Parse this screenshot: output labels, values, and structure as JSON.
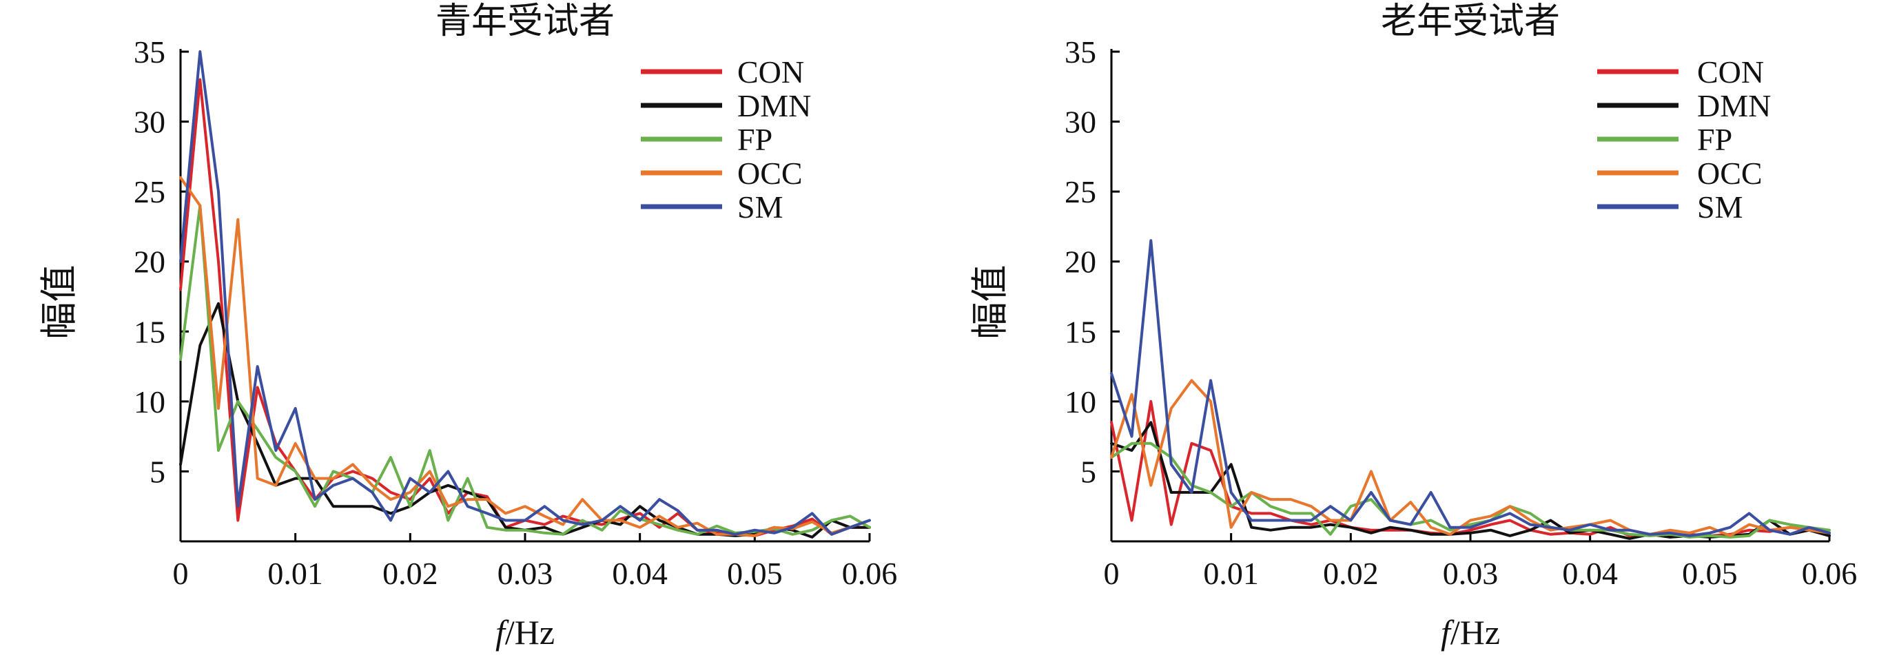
{
  "chart_data": [
    {
      "type": "line",
      "title": "青年受试者",
      "xlabel_italic": "f",
      "xlabel_rest": "/Hz",
      "ylabel": "幅值",
      "xlim": [
        0,
        0.06
      ],
      "ylim": [
        0,
        35
      ],
      "xticks": [
        0,
        0.01,
        0.02,
        0.03,
        0.04,
        0.05,
        0.06
      ],
      "xtick_labels": [
        "0",
        "0.01",
        "0.02",
        "0.03",
        "0.04",
        "0.05",
        "0.06"
      ],
      "yticks": [
        5,
        10,
        15,
        20,
        25,
        30,
        35
      ],
      "ytick_labels": [
        "5",
        "10",
        "15",
        "20",
        "25",
        "30",
        "35"
      ],
      "grid": false,
      "legend_position": "top-right",
      "series": [
        {
          "name": "CON",
          "color": "#d8262c",
          "x": [
            0,
            0.0017,
            0.0033,
            0.005,
            0.0067,
            0.0083,
            0.01,
            0.0117,
            0.0133,
            0.015,
            0.0167,
            0.0183,
            0.02,
            0.0217,
            0.0233,
            0.025,
            0.0267,
            0.0283,
            0.03,
            0.0317,
            0.0333,
            0.035,
            0.0367,
            0.0383,
            0.04,
            0.0417,
            0.0433,
            0.045,
            0.0467,
            0.0483,
            0.05,
            0.0517,
            0.0533,
            0.055,
            0.0567,
            0.0583,
            0.06
          ],
          "y": [
            18,
            33,
            20,
            1.5,
            11,
            7,
            5,
            3,
            4.5,
            5,
            4.5,
            3.5,
            3,
            4.5,
            2,
            3.5,
            3.2,
            1,
            1.5,
            1.2,
            1.8,
            1.4,
            1.2,
            1.6,
            2,
            1,
            2,
            0.8,
            0.6,
            0.5,
            0.4,
            0.8,
            1.1,
            1.6,
            0.5,
            1,
            1
          ]
        },
        {
          "name": "DMN",
          "color": "#111111",
          "x": [
            0,
            0.0017,
            0.0033,
            0.005,
            0.0067,
            0.0083,
            0.01,
            0.0117,
            0.0133,
            0.015,
            0.0167,
            0.0183,
            0.02,
            0.0217,
            0.0233,
            0.025,
            0.0267,
            0.0283,
            0.03,
            0.0317,
            0.0333,
            0.035,
            0.0367,
            0.0383,
            0.04,
            0.0417,
            0.0433,
            0.045,
            0.0467,
            0.0483,
            0.05,
            0.0517,
            0.0533,
            0.055,
            0.0567,
            0.0583,
            0.06
          ],
          "y": [
            5.5,
            14,
            17,
            10,
            7,
            4,
            4.5,
            4.5,
            2.5,
            2.5,
            2.5,
            2,
            2.5,
            3.5,
            4,
            3.5,
            3,
            1,
            0.8,
            1,
            0.5,
            1,
            1.5,
            1.2,
            2.5,
            1.5,
            1,
            0.5,
            0.5,
            0.4,
            0.5,
            1,
            0.8,
            0.3,
            1.5,
            1,
            1
          ]
        },
        {
          "name": "FP",
          "color": "#6ab04c",
          "x": [
            0,
            0.0017,
            0.0033,
            0.005,
            0.0067,
            0.0083,
            0.01,
            0.0117,
            0.0133,
            0.015,
            0.0167,
            0.0183,
            0.02,
            0.0217,
            0.0233,
            0.025,
            0.0267,
            0.0283,
            0.03,
            0.0317,
            0.0333,
            0.035,
            0.0367,
            0.0383,
            0.04,
            0.0417,
            0.0433,
            0.045,
            0.0467,
            0.0483,
            0.05,
            0.0517,
            0.0533,
            0.055,
            0.0567,
            0.0583,
            0.06
          ],
          "y": [
            13,
            24,
            6.5,
            10,
            8,
            6,
            5,
            2.5,
            5,
            4.5,
            3.5,
            6,
            2.5,
            6.5,
            1.5,
            4.5,
            1,
            0.8,
            0.8,
            0.6,
            0.5,
            1.5,
            0.8,
            2.2,
            1.6,
            1.2,
            0.8,
            0.5,
            1.1,
            0.6,
            0.7,
            0.9,
            0.5,
            0.8,
            1.5,
            1.8,
            1
          ]
        },
        {
          "name": "OCC",
          "color": "#e8772e",
          "x": [
            0,
            0.0017,
            0.0033,
            0.005,
            0.0067,
            0.0083,
            0.01,
            0.0117,
            0.0133,
            0.015,
            0.0167,
            0.0183,
            0.02,
            0.0217,
            0.0233,
            0.025,
            0.0267,
            0.0283,
            0.03,
            0.0317,
            0.0333,
            0.035,
            0.0367,
            0.0383,
            0.04,
            0.0417,
            0.0433,
            0.045,
            0.0467,
            0.0483,
            0.05,
            0.0517,
            0.0533,
            0.055,
            0.0567,
            0.0583,
            0.06
          ],
          "y": [
            26,
            24,
            9.5,
            23,
            4.5,
            4,
            7,
            4.5,
            4.5,
            5.5,
            4,
            3,
            3.5,
            5,
            2.5,
            3,
            3,
            2,
            2.5,
            1.8,
            1.2,
            3,
            1.5,
            1.5,
            1,
            1.8,
            1,
            1.3,
            0.5,
            0.5,
            0.4,
            1,
            0.9,
            1.4,
            0.6,
            1,
            1.5
          ]
        },
        {
          "name": "SM",
          "color": "#3b4fa0",
          "x": [
            0,
            0.0017,
            0.0033,
            0.005,
            0.0067,
            0.0083,
            0.01,
            0.0117,
            0.0133,
            0.015,
            0.0167,
            0.0183,
            0.02,
            0.0217,
            0.0233,
            0.025,
            0.0267,
            0.0283,
            0.03,
            0.0317,
            0.0333,
            0.035,
            0.0367,
            0.0383,
            0.04,
            0.0417,
            0.0433,
            0.045,
            0.0467,
            0.0483,
            0.05,
            0.0517,
            0.0533,
            0.055,
            0.0567,
            0.0583,
            0.06
          ],
          "y": [
            20,
            35,
            25,
            2.5,
            12.5,
            6.5,
            9.5,
            3,
            4,
            4.5,
            3.5,
            1.5,
            4.5,
            3.5,
            5,
            2.5,
            2,
            1.5,
            1.5,
            2.5,
            1.5,
            1.2,
            1.5,
            2.5,
            1.5,
            3,
            2.2,
            0.8,
            0.8,
            0.5,
            0.8,
            0.6,
            1,
            2,
            0.5,
            1,
            1.5
          ]
        }
      ]
    },
    {
      "type": "line",
      "title": "老年受试者",
      "xlabel_italic": "f",
      "xlabel_rest": "/Hz",
      "ylabel": "幅值",
      "xlim": [
        0,
        0.06
      ],
      "ylim": [
        0,
        35
      ],
      "xticks": [
        0,
        0.01,
        0.02,
        0.03,
        0.04,
        0.05,
        0.06
      ],
      "xtick_labels": [
        "0",
        "0.01",
        "0.02",
        "0.03",
        "0.04",
        "0.05",
        "0.06"
      ],
      "yticks": [
        5,
        10,
        15,
        20,
        25,
        30,
        35
      ],
      "ytick_labels": [
        "5",
        "10",
        "15",
        "20",
        "25",
        "30",
        "35"
      ],
      "grid": false,
      "legend_position": "top-right",
      "series": [
        {
          "name": "CON",
          "color": "#d8262c",
          "x": [
            0,
            0.0017,
            0.0033,
            0.005,
            0.0067,
            0.0083,
            0.01,
            0.0117,
            0.0133,
            0.015,
            0.0167,
            0.0183,
            0.02,
            0.0217,
            0.0233,
            0.025,
            0.0267,
            0.0283,
            0.03,
            0.0317,
            0.0333,
            0.035,
            0.0367,
            0.0383,
            0.04,
            0.0417,
            0.0433,
            0.045,
            0.0467,
            0.0483,
            0.05,
            0.0517,
            0.0533,
            0.055,
            0.0567,
            0.0583,
            0.06
          ],
          "y": [
            8.5,
            1.5,
            10,
            1.2,
            7,
            6.5,
            2.5,
            2,
            2,
            1.5,
            1.2,
            1.5,
            1,
            0.8,
            0.8,
            0.8,
            0.6,
            0.5,
            0.8,
            1.2,
            1.5,
            0.8,
            0.5,
            0.6,
            0.5,
            1,
            0.4,
            0.5,
            0.3,
            0.5,
            0.4,
            0.5,
            0.8,
            0.7,
            1,
            0.8,
            0.4
          ]
        },
        {
          "name": "DMN",
          "color": "#111111",
          "x": [
            0,
            0.0017,
            0.0033,
            0.005,
            0.0067,
            0.0083,
            0.01,
            0.0117,
            0.0133,
            0.015,
            0.0167,
            0.0183,
            0.02,
            0.0217,
            0.0233,
            0.025,
            0.0267,
            0.0283,
            0.03,
            0.0317,
            0.0333,
            0.035,
            0.0367,
            0.0383,
            0.04,
            0.0417,
            0.0433,
            0.045,
            0.0467,
            0.0483,
            0.05,
            0.0517,
            0.0533,
            0.055,
            0.0567,
            0.0583,
            0.06
          ],
          "y": [
            7,
            6.5,
            8.5,
            3.5,
            3.5,
            3.5,
            5.5,
            1,
            0.8,
            1,
            1,
            1.2,
            1,
            0.6,
            1,
            0.8,
            0.5,
            0.5,
            0.6,
            0.8,
            0.4,
            0.8,
            1.5,
            0.6,
            0.8,
            0.5,
            0.2,
            0.5,
            0.3,
            0.4,
            0.3,
            0.4,
            0.5,
            1.5,
            0.5,
            0.8,
            0.4
          ]
        },
        {
          "name": "FP",
          "color": "#6ab04c",
          "x": [
            0,
            0.0017,
            0.0033,
            0.005,
            0.0067,
            0.0083,
            0.01,
            0.0117,
            0.0133,
            0.015,
            0.0167,
            0.0183,
            0.02,
            0.0217,
            0.0233,
            0.025,
            0.0267,
            0.0283,
            0.03,
            0.0317,
            0.0333,
            0.035,
            0.0367,
            0.0383,
            0.04,
            0.0417,
            0.0433,
            0.045,
            0.0467,
            0.0483,
            0.05,
            0.0517,
            0.0533,
            0.055,
            0.0567,
            0.0583,
            0.06
          ],
          "y": [
            6,
            7,
            7,
            6,
            4,
            3.5,
            2.5,
            3.5,
            2.5,
            2,
            2,
            0.5,
            2.5,
            3,
            1.5,
            1.2,
            1.5,
            0.8,
            1.2,
            1.5,
            2.5,
            2,
            1,
            0.8,
            0.8,
            0.8,
            0.5,
            0.4,
            0.5,
            0.3,
            0.4,
            0.3,
            0.4,
            1.5,
            1.2,
            1,
            0.8
          ]
        },
        {
          "name": "OCC",
          "color": "#e8772e",
          "x": [
            0,
            0.0017,
            0.0033,
            0.005,
            0.0067,
            0.0083,
            0.01,
            0.0117,
            0.0133,
            0.015,
            0.0167,
            0.0183,
            0.02,
            0.0217,
            0.0233,
            0.025,
            0.0267,
            0.0283,
            0.03,
            0.0317,
            0.0333,
            0.035,
            0.0367,
            0.0383,
            0.04,
            0.0417,
            0.0433,
            0.045,
            0.0467,
            0.0483,
            0.05,
            0.0517,
            0.0533,
            0.055,
            0.0567,
            0.0583,
            0.06
          ],
          "y": [
            6,
            10.5,
            4,
            9.5,
            11.5,
            10,
            1,
            3.5,
            3,
            3,
            2.5,
            1.5,
            1.5,
            5,
            1.5,
            2.8,
            1,
            0.5,
            1.5,
            1.8,
            2.5,
            1.5,
            0.8,
            1,
            1.2,
            1.5,
            0.8,
            0.5,
            0.8,
            0.6,
            1,
            0.4,
            1.2,
            0.8,
            1,
            0.8,
            0.6
          ]
        },
        {
          "name": "SM",
          "color": "#3b4fa0",
          "x": [
            0,
            0.0017,
            0.0033,
            0.005,
            0.0067,
            0.0083,
            0.01,
            0.0117,
            0.0133,
            0.015,
            0.0167,
            0.0183,
            0.02,
            0.0217,
            0.0233,
            0.025,
            0.0267,
            0.0283,
            0.03,
            0.0317,
            0.0333,
            0.035,
            0.0367,
            0.0383,
            0.04,
            0.0417,
            0.0433,
            0.045,
            0.0467,
            0.0483,
            0.05,
            0.0517,
            0.0533,
            0.055,
            0.0567,
            0.0583,
            0.06
          ],
          "y": [
            12,
            7.5,
            21.5,
            5.5,
            3.5,
            11.5,
            3.5,
            1.5,
            1.5,
            1.5,
            1.5,
            2.5,
            1.5,
            3.5,
            1.5,
            1.2,
            3.5,
            1,
            1,
            1.5,
            2,
            1.2,
            1,
            0.8,
            1.2,
            0.8,
            0.8,
            0.5,
            0.6,
            0.4,
            0.6,
            1,
            2,
            0.8,
            0.5,
            1,
            0.6
          ]
        }
      ]
    }
  ]
}
